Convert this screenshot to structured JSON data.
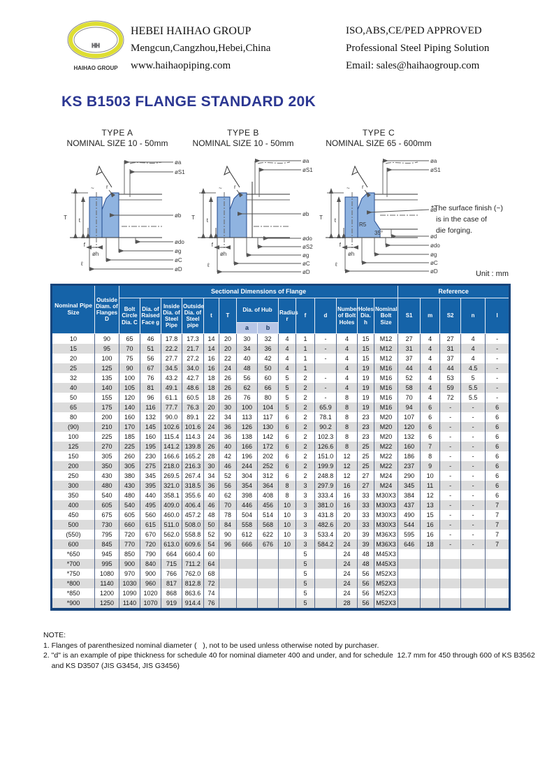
{
  "header": {
    "logo": {
      "monogram": "HH",
      "caption": "HAIHAO GROUP"
    },
    "left": {
      "line1": "HEBEI HAIHAO GROUP",
      "line2": "Mengcun,Cangzhou,Hebei,China",
      "line3": "www.haihaopiping.com"
    },
    "right": {
      "line1": "ISO,ABS,CE/PED APPROVED",
      "line2": "Professional Steel Piping Solution",
      "line3": "Email: sales@haihaogroup.com"
    }
  },
  "title": "KS B1503 FLANGE STANDARD  20K",
  "diagrams": [
    {
      "type_label": "TYPE A",
      "size_label": "NOMINAL SIZE 10 - 50mm",
      "right_labels": [
        "øa",
        "øS1",
        "øb",
        "ødo",
        "øg",
        "øC",
        "øD"
      ],
      "left_labels": {
        "T": "T",
        "t": "t",
        "f": "f",
        "h": "øh",
        "ell": "ℓ",
        "r": "r",
        "tilde": "~"
      }
    },
    {
      "type_label": "TYPE B",
      "size_label": "NOMINAL SIZE 10 - 50mm",
      "right_labels": [
        "øa",
        "øS1",
        "øb",
        "ødo",
        "øS2",
        "øg",
        "øC",
        "øD"
      ],
      "left_labels": {
        "T": "T",
        "t": "t",
        "f": "f",
        "h": "øh",
        "ell": "ℓ",
        "r": "r",
        "tilde": "~"
      }
    },
    {
      "type_label": "TYPE C",
      "size_label": "NOMINAL SIZE 65 - 600mm",
      "right_labels": [
        "øa",
        "øS1",
        "øb",
        "ød",
        "ødo",
        "øg",
        "øC",
        "øD"
      ],
      "left_labels": {
        "T": "T",
        "t": "t",
        "f": "f",
        "h": "øh",
        "ell": "ℓ",
        "r": "r",
        "tilde": "~"
      },
      "annotations": {
        "r5": "R5",
        "angle": "35°"
      }
    }
  ],
  "surface_note": {
    "line1": "*The surface finish (~)",
    "line2": "is in the case of",
    "line3": "die forging."
  },
  "unit_label": "Unit : mm",
  "table": {
    "group_headers": {
      "sectional": "Sectional Dimensions of Flange",
      "reference": "Reference"
    },
    "columns": {
      "nominal": "Nominal Pipe Size",
      "outside": "Outside Diam. of Flanges D",
      "bolt_circle": "Bolt Circle Dia. C",
      "raised_face": "Dia. of Raised Face g",
      "inside_dia": "Inside Dia. of Steel Pipe",
      "outside_dia": "Outside Dia. of Steel pipe",
      "t": "t",
      "T": "T",
      "hub": "Dia. of Hub",
      "a": "a",
      "b": "b",
      "radius": "Radius r",
      "f": "f",
      "d": "d",
      "holes_count": "Number of Bolt Holes",
      "holes_dia": "Holes Dia. h",
      "bolt_size": "Nominal Bolt Size",
      "s1": "S1",
      "m": "m",
      "s2": "S2",
      "n": "n",
      "l": "l"
    },
    "rows": [
      [
        "10",
        "90",
        "65",
        "46",
        "17.8",
        "17.3",
        "14",
        "20",
        "30",
        "32",
        "4",
        "1",
        "-",
        "4",
        "15",
        "M12",
        "27",
        "4",
        "27",
        "4",
        "-"
      ],
      [
        "15",
        "95",
        "70",
        "51",
        "22.2",
        "21.7",
        "14",
        "20",
        "34",
        "36",
        "4",
        "1",
        "-",
        "4",
        "15",
        "M12",
        "31",
        "4",
        "31",
        "4",
        "-"
      ],
      [
        "20",
        "100",
        "75",
        "56",
        "27.7",
        "27.2",
        "16",
        "22",
        "40",
        "42",
        "4",
        "1",
        "-",
        "4",
        "15",
        "M12",
        "37",
        "4",
        "37",
        "4",
        "-"
      ],
      [
        "25",
        "125",
        "90",
        "67",
        "34.5",
        "34.0",
        "16",
        "24",
        "48",
        "50",
        "4",
        "1",
        "",
        "4",
        "19",
        "M16",
        "44",
        "4",
        "44",
        "4.5",
        "-"
      ],
      [
        "32",
        "135",
        "100",
        "76",
        "43.2",
        "42.7",
        "18",
        "26",
        "56",
        "60",
        "5",
        "2",
        "-",
        "4",
        "19",
        "M16",
        "52",
        "4",
        "53",
        "5",
        "-"
      ],
      [
        "40",
        "140",
        "105",
        "81",
        "49.1",
        "48.6",
        "18",
        "26",
        "62",
        "66",
        "5",
        "2",
        "-",
        "4",
        "19",
        "M16",
        "58",
        "4",
        "59",
        "5.5",
        "-"
      ],
      [
        "50",
        "155",
        "120",
        "96",
        "61.1",
        "60.5",
        "18",
        "26",
        "76",
        "80",
        "5",
        "2",
        "-",
        "8",
        "19",
        "M16",
        "70",
        "4",
        "72",
        "5.5",
        "-"
      ],
      [
        "65",
        "175",
        "140",
        "116",
        "77.7",
        "76.3",
        "20",
        "30",
        "100",
        "104",
        "5",
        "2",
        "65.9",
        "8",
        "19",
        "M16",
        "94",
        "6",
        "-",
        "-",
        "6"
      ],
      [
        "80",
        "200",
        "160",
        "132",
        "90.0",
        "89.1",
        "22",
        "34",
        "113",
        "117",
        "6",
        "2",
        "78.1",
        "8",
        "23",
        "M20",
        "107",
        "6",
        "-",
        "-",
        "6"
      ],
      [
        "(90)",
        "210",
        "170",
        "145",
        "102.6",
        "101.6",
        "24",
        "36",
        "126",
        "130",
        "6",
        "2",
        "90.2",
        "8",
        "23",
        "M20",
        "120",
        "6",
        "-",
        "-",
        "6"
      ],
      [
        "100",
        "225",
        "185",
        "160",
        "115.4",
        "114.3",
        "24",
        "36",
        "138",
        "142",
        "6",
        "2",
        "102.3",
        "8",
        "23",
        "M20",
        "132",
        "6",
        "-",
        "-",
        "6"
      ],
      [
        "125",
        "270",
        "225",
        "195",
        "141.2",
        "139.8",
        "26",
        "40",
        "166",
        "172",
        "6",
        "2",
        "126.6",
        "8",
        "25",
        "M22",
        "160",
        "7",
        "-",
        "-",
        "6"
      ],
      [
        "150",
        "305",
        "260",
        "230",
        "166.6",
        "165.2",
        "28",
        "42",
        "196",
        "202",
        "6",
        "2",
        "151.0",
        "12",
        "25",
        "M22",
        "186",
        "8",
        "-",
        "-",
        "6"
      ],
      [
        "200",
        "350",
        "305",
        "275",
        "218.0",
        "216.3",
        "30",
        "46",
        "244",
        "252",
        "6",
        "2",
        "199.9",
        "12",
        "25",
        "M22",
        "237",
        "9",
        "-",
        "-",
        "6"
      ],
      [
        "250",
        "430",
        "380",
        "345",
        "269.5",
        "267.4",
        "34",
        "52",
        "304",
        "312",
        "6",
        "2",
        "248.8",
        "12",
        "27",
        "M24",
        "290",
        "10",
        "-",
        "-",
        "6"
      ],
      [
        "300",
        "480",
        "430",
        "395",
        "321.0",
        "318.5",
        "36",
        "56",
        "354",
        "364",
        "8",
        "3",
        "297.9",
        "16",
        "27",
        "M24",
        "345",
        "11",
        "-",
        "-",
        "6"
      ],
      [
        "350",
        "540",
        "480",
        "440",
        "358.1",
        "355.6",
        "40",
        "62",
        "398",
        "408",
        "8",
        "3",
        "333.4",
        "16",
        "33",
        "M30X3",
        "384",
        "12",
        "-",
        "-",
        "6"
      ],
      [
        "400",
        "605",
        "540",
        "495",
        "409.0",
        "406.4",
        "46",
        "70",
        "446",
        "456",
        "10",
        "3",
        "381.0",
        "16",
        "33",
        "M30X3",
        "437",
        "13",
        "-",
        "-",
        "7"
      ],
      [
        "450",
        "675",
        "605",
        "560",
        "460.0",
        "457.2",
        "48",
        "78",
        "504",
        "514",
        "10",
        "3",
        "431.8",
        "20",
        "33",
        "M30X3",
        "490",
        "15",
        "-",
        "-",
        "7"
      ],
      [
        "500",
        "730",
        "660",
        "615",
        "511.0",
        "508.0",
        "50",
        "84",
        "558",
        "568",
        "10",
        "3",
        "482.6",
        "20",
        "33",
        "M30X3",
        "544",
        "16",
        "-",
        "-",
        "7"
      ],
      [
        "(550)",
        "795",
        "720",
        "670",
        "562.0",
        "558.8",
        "52",
        "90",
        "612",
        "622",
        "10",
        "3",
        "533.4",
        "20",
        "39",
        "M36X3",
        "595",
        "16",
        "-",
        "-",
        "7"
      ],
      [
        "600",
        "845",
        "770",
        "720",
        "613.0",
        "609.6",
        "54",
        "96",
        "666",
        "676",
        "10",
        "3",
        "584.2",
        "24",
        "39",
        "M36X3",
        "646",
        "18",
        "-",
        "-",
        "7"
      ],
      [
        "*650",
        "945",
        "850",
        "790",
        "664",
        "660.4",
        "60",
        "",
        "",
        "",
        "",
        "5",
        "",
        "24",
        "48",
        "M45X3",
        "",
        "",
        "",
        "",
        ""
      ],
      [
        "*700",
        "995",
        "900",
        "840",
        "715",
        "711.2",
        "64",
        "",
        "",
        "",
        "",
        "5",
        "",
        "24",
        "48",
        "M45X3",
        "",
        "",
        "",
        "",
        ""
      ],
      [
        "*750",
        "1080",
        "970",
        "900",
        "766",
        "762.0",
        "68",
        "",
        "",
        "",
        "",
        "5",
        "",
        "24",
        "56",
        "M52X3",
        "",
        "",
        "",
        "",
        ""
      ],
      [
        "*800",
        "1140",
        "1030",
        "960",
        "817",
        "812.8",
        "72",
        "",
        "",
        "",
        "",
        "5",
        "",
        "24",
        "56",
        "M52X3",
        "",
        "",
        "",
        "",
        ""
      ],
      [
        "*850",
        "1200",
        "1090",
        "1020",
        "868",
        "863.6",
        "74",
        "",
        "",
        "",
        "",
        "5",
        "",
        "24",
        "56",
        "M52X3",
        "",
        "",
        "",
        "",
        ""
      ],
      [
        "*900",
        "1250",
        "1140",
        "1070",
        "919",
        "914.4",
        "76",
        "",
        "",
        "",
        "",
        "5",
        "",
        "28",
        "56",
        "M52X3",
        "",
        "",
        "",
        "",
        ""
      ]
    ]
  },
  "note": {
    "heading": "NOTE:",
    "line1": "1. Flanges of parenthesized nominal diameter (   ), not to be used unless otherwise noted by purchaser.",
    "line2": "2. \"d\" is an example of pipe thickness for schedule 40 for nominal diameter 400 and under, and for schedule  12.7 mm for 450 through 600 of KS B3562",
    "line3": "    and KS D3507 (JIS G3454, JIS G3456)"
  },
  "colors": {
    "header_blue": "#1563a8",
    "sub_header": "#b8c6e6",
    "stripe": "#dcdcdc",
    "title_blue": "#2c3792",
    "flange_fill": "#8fb3e0",
    "flange_stroke": "#22488c"
  }
}
